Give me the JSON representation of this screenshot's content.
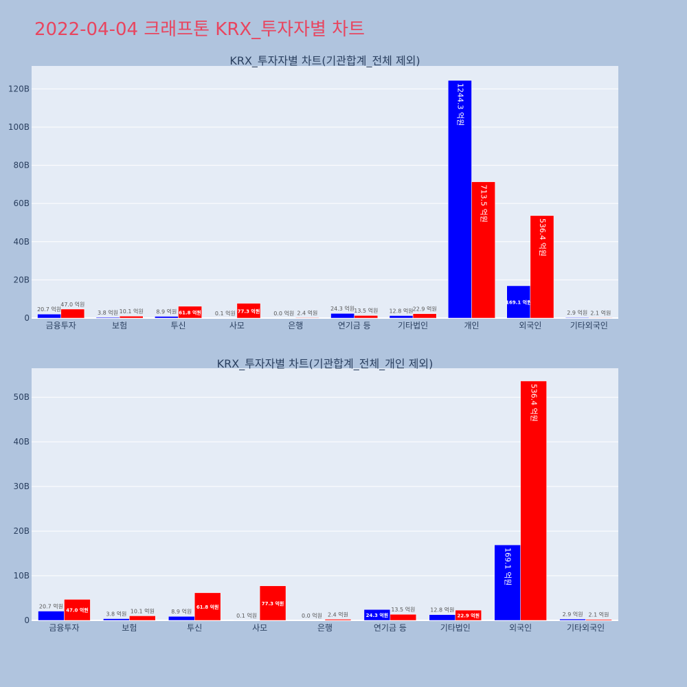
{
  "page": {
    "title": "2022-04-04 크래프톤 KRX_투자자별 차트"
  },
  "colors": {
    "background": "#b0c4de",
    "plot_background": "#e5ecf6",
    "title": "#e8455f",
    "sell": "#0000ff",
    "buy": "#ff0000",
    "text": "#2a3f5f"
  },
  "chart_data": [
    {
      "type": "bar",
      "title": "KRX_투자자별 차트(기관합계_전체 제외)",
      "categories": [
        "금융투자",
        "보험",
        "투신",
        "사모",
        "은행",
        "연기금 등",
        "기타법인",
        "개인",
        "외국인",
        "기타외국인"
      ],
      "series": [
        {
          "color": "#0000ff",
          "values": [
            2.07,
            0.38,
            0.89,
            0.01,
            0.0,
            2.43,
            1.28,
            124.43,
            16.91,
            0.29
          ],
          "labels": [
            "20.7 억원",
            "3.8 억원",
            "8.9 억원",
            "0.1 억원",
            "0.0 억원",
            "24.3 억원",
            "12.8 억원",
            "1244.3 억원",
            "169.1 억원",
            "2.9 억원"
          ]
        },
        {
          "color": "#ff0000",
          "values": [
            4.7,
            1.01,
            6.18,
            7.73,
            0.24,
            1.35,
            2.29,
            71.35,
            53.64,
            0.21
          ],
          "labels": [
            "47.0 억원",
            "10.1 억원",
            "61.8 억원",
            "77.3 억원",
            "2.4 억원",
            "13.5 억원",
            "22.9 억원",
            "713.5 억원",
            "536.4 억원",
            "2.1 억원"
          ]
        }
      ],
      "ylim": [
        0,
        132
      ],
      "yticks": [
        0,
        20,
        40,
        60,
        80,
        100,
        120
      ],
      "ytick_labels": [
        "0",
        "20B",
        "40B",
        "60B",
        "80B",
        "100B",
        "120B"
      ],
      "grid": true,
      "legend": "none"
    },
    {
      "type": "bar",
      "title": "KRX_투자자별 차트(기관합계_전체_개인 제외)",
      "categories": [
        "금융투자",
        "보험",
        "투신",
        "사모",
        "은행",
        "연기금 등",
        "기타법인",
        "외국인",
        "기타외국인"
      ],
      "series": [
        {
          "color": "#0000ff",
          "values": [
            2.07,
            0.38,
            0.89,
            0.01,
            0.0,
            2.43,
            1.28,
            16.91,
            0.29
          ],
          "labels": [
            "20.7 억원",
            "3.8 억원",
            "8.9 억원",
            "0.1 억원",
            "0.0 억원",
            "24.3 억원",
            "12.8 억원",
            "169.1 억원",
            "2.9 억원"
          ]
        },
        {
          "color": "#ff0000",
          "values": [
            4.7,
            1.01,
            6.18,
            7.73,
            0.24,
            1.35,
            2.29,
            53.64,
            0.21
          ],
          "labels": [
            "47.0 억원",
            "10.1 억원",
            "61.8 억원",
            "77.3 억원",
            "2.4 억원",
            "13.5 억원",
            "22.9 억원",
            "536.4 억원",
            "2.1 억원"
          ]
        }
      ],
      "ylim": [
        0,
        56.5
      ],
      "yticks": [
        0,
        10,
        20,
        30,
        40,
        50
      ],
      "ytick_labels": [
        "0",
        "10B",
        "20B",
        "30B",
        "40B",
        "50B"
      ],
      "grid": true,
      "legend": "none"
    }
  ]
}
